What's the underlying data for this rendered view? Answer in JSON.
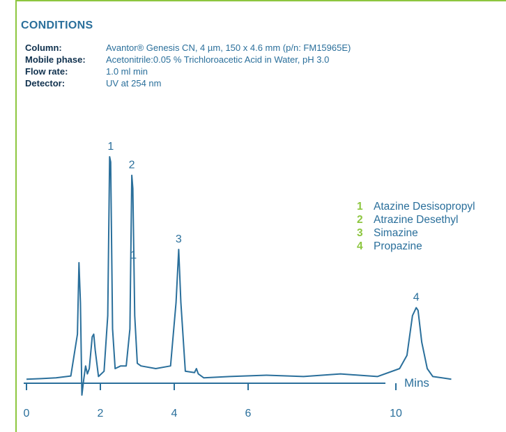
{
  "conditions": {
    "title": "CONDITIONS",
    "rows": [
      {
        "label": "Column:",
        "value": "Avantor® Genesis CN, 4 µm, 150 x 4.6 mm (p/n: FM15965E)"
      },
      {
        "label": "Mobile phase:",
        "value": "Acetonitrile:0.05 % Trichloroacetic Acid in Water, pH 3.0"
      },
      {
        "label": "Flow rate:",
        "value": "1.0 ml min"
      },
      {
        "label": "Detector:",
        "value": "UV at 254 nm"
      }
    ]
  },
  "legend": [
    {
      "num": "1",
      "name": "Atazine Desisopropyl"
    },
    {
      "num": "2",
      "name": "Atrazine Desethyl"
    },
    {
      "num": "3",
      "name": "Simazine"
    },
    {
      "num": "4",
      "name": "Propazine"
    }
  ],
  "chart_data": {
    "type": "line",
    "xlabel": "Mins",
    "xlim": [
      0,
      11.5
    ],
    "ylim": [
      -0.05,
      1.0
    ],
    "xticks": [
      0,
      2,
      4,
      6,
      10
    ],
    "grid": false,
    "legend_placement": "right",
    "colors": {
      "line": "#2a6f9b",
      "accent": "#8dc63f"
    },
    "series": [
      {
        "x": [
          0,
          0.4,
          0.8,
          1.2,
          1.38,
          1.42,
          1.46,
          1.5,
          1.55,
          1.6,
          1.65,
          1.7,
          1.78,
          1.82,
          1.86,
          1.95,
          2.1,
          2.2,
          2.25,
          2.28,
          2.33,
          2.4,
          2.55,
          2.7,
          2.8,
          2.85,
          2.88,
          2.93,
          3.0,
          3.1,
          3.5,
          3.9,
          4.05,
          4.12,
          4.18,
          4.3,
          4.55,
          4.6,
          4.65,
          4.8,
          5.5,
          6.5,
          7.5,
          8.5,
          9.5,
          10.1,
          10.3,
          10.45,
          10.55,
          10.6,
          10.7,
          10.85,
          11.0,
          11.5
        ],
        "y": [
          0.01,
          0.012,
          0.015,
          0.022,
          0.18,
          0.45,
          0.3,
          -0.05,
          0.01,
          0.06,
          0.03,
          0.05,
          0.17,
          0.18,
          0.12,
          0.02,
          0.04,
          0.25,
          0.85,
          0.83,
          0.2,
          0.05,
          0.06,
          0.06,
          0.2,
          0.78,
          0.73,
          0.25,
          0.07,
          0.06,
          0.05,
          0.06,
          0.3,
          0.5,
          0.3,
          0.04,
          0.035,
          0.05,
          0.03,
          0.015,
          0.02,
          0.025,
          0.02,
          0.03,
          0.02,
          0.05,
          0.1,
          0.25,
          0.28,
          0.27,
          0.15,
          0.05,
          0.02,
          0.01
        ]
      }
    ],
    "peak_labels": [
      {
        "label": "1",
        "x": 2.28,
        "y": 0.85
      },
      {
        "label": "2",
        "x": 2.85,
        "y": 0.78
      },
      {
        "label": "1",
        "x": 2.9,
        "y": 0.44
      },
      {
        "label": "3",
        "x": 4.12,
        "y": 0.5
      },
      {
        "label": "4",
        "x": 10.55,
        "y": 0.28
      }
    ]
  }
}
